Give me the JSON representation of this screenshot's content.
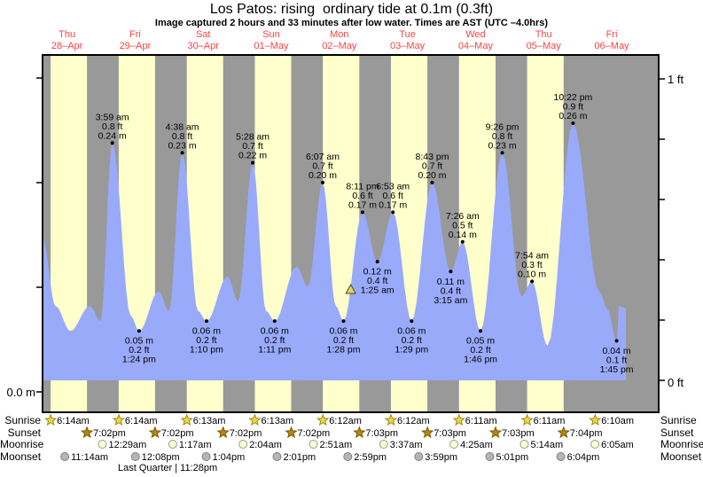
{
  "header": {
    "title": "Los Patos: rising  ordinary tide at 0.1m (0.3ft)",
    "subtitle": "Image captured 2 hours and 33 minutes after low water. Times are AST (UTC –4.0hrs)"
  },
  "chart_data": {
    "type": "area",
    "title": "Los Patos: rising  ordinary tide at 0.1m (0.3ft)",
    "x_axis": {
      "unit": "days",
      "days_shown": 9
    },
    "y_axis": {
      "left_label": "0.0 m",
      "right_top_label": "1 ft",
      "right_bottom_label": "0 ft",
      "right_ticks_ft": [
        0,
        0.2,
        0.4,
        0.6,
        0.8,
        1.0
      ],
      "left_ticks_m": [
        0.0,
        0.1,
        0.2,
        0.3
      ]
    },
    "days": [
      {
        "weekday": "Thu",
        "date": "28–Apr"
      },
      {
        "weekday": "Fri",
        "date": "29–Apr"
      },
      {
        "weekday": "Sat",
        "date": "30–Apr"
      },
      {
        "weekday": "Sun",
        "date": "01–May"
      },
      {
        "weekday": "Mon",
        "date": "02–May"
      },
      {
        "weekday": "Tue",
        "date": "03–May"
      },
      {
        "weekday": "Wed",
        "date": "04–May"
      },
      {
        "weekday": "Thu",
        "date": "05–May"
      },
      {
        "weekday": "Fri",
        "date": "06–May"
      }
    ],
    "tide_events": [
      {
        "day": 1,
        "time": "3:59 am",
        "ft": "0.8 ft",
        "m": "0.24 m",
        "type": "high"
      },
      {
        "day": 1,
        "time": "1:24 pm",
        "ft": "0.2 ft",
        "m": "0.05 m",
        "type": "low"
      },
      {
        "day": 2,
        "time": "4:38 am",
        "ft": "0.8 ft",
        "m": "0.23 m",
        "type": "high"
      },
      {
        "day": 2,
        "time": "1:10 pm",
        "ft": "0.2 ft",
        "m": "0.06 m",
        "type": "low"
      },
      {
        "day": 3,
        "time": "5:28 am",
        "ft": "0.7 ft",
        "m": "0.22 m",
        "type": "high"
      },
      {
        "day": 3,
        "time": "1:11 pm",
        "ft": "0.2 ft",
        "m": "0.06 m",
        "type": "low"
      },
      {
        "day": 4,
        "time": "6:07 am",
        "ft": "0.7 ft",
        "m": "0.20 m",
        "type": "high"
      },
      {
        "day": 4,
        "time": "1:28 pm",
        "ft": "0.2 ft",
        "m": "0.06 m",
        "type": "low"
      },
      {
        "day": 4,
        "time": "8:11 pm",
        "ft": "0.6 ft",
        "m": "0.17 m",
        "type": "high"
      },
      {
        "day": 5,
        "time": "1:25 am",
        "ft": "0.4 ft",
        "m": "0.12 m",
        "type": "low"
      },
      {
        "day": 5,
        "time": "6:53 am",
        "ft": "0.6 ft",
        "m": "0.17 m",
        "type": "high"
      },
      {
        "day": 5,
        "time": "1:29 pm",
        "ft": "0.2 ft",
        "m": "0.06 m",
        "type": "low"
      },
      {
        "day": 5,
        "time": "8:43 pm",
        "ft": "0.7 ft",
        "m": "0.20 m",
        "type": "high"
      },
      {
        "day": 6,
        "time": "3:15 am",
        "ft": "0.4 ft",
        "m": "0.11 m",
        "type": "low"
      },
      {
        "day": 6,
        "time": "7:26 am",
        "ft": "0.5 ft",
        "m": "0.14 m",
        "type": "high"
      },
      {
        "day": 6,
        "time": "1:46 pm",
        "ft": "0.2 ft",
        "m": "0.05 m",
        "type": "low"
      },
      {
        "day": 6,
        "time": "9:26 pm",
        "ft": "0.8 ft",
        "m": "0.23 m",
        "type": "high"
      },
      {
        "day": 7,
        "time": "7:54 am",
        "ft": "0.3 ft",
        "m": "0.10 m",
        "type": "high"
      },
      {
        "day": 7,
        "time": "10:22 pm",
        "ft": "0.9 ft",
        "m": "0.26 m",
        "type": "high"
      },
      {
        "day": 8,
        "time": "1:45 pm",
        "ft": "0.1 ft",
        "m": "0.04 m",
        "type": "low"
      }
    ],
    "curve_extra_points": [
      [
        0,
        3.3,
        0.145
      ],
      [
        0,
        8.0,
        0.075
      ],
      [
        0,
        13.2,
        0.05
      ],
      [
        0,
        20.0,
        0.075
      ],
      [
        0,
        23.8,
        0.06
      ],
      [
        1,
        10.5,
        0.065
      ],
      [
        1,
        20.3,
        0.09
      ],
      [
        1,
        23.9,
        0.07
      ],
      [
        2,
        10.2,
        0.07
      ],
      [
        2,
        20.6,
        0.105
      ],
      [
        3,
        0.3,
        0.08
      ],
      [
        3,
        10.2,
        0.07
      ],
      [
        3,
        20.9,
        0.115
      ],
      [
        4,
        0.9,
        0.095
      ],
      [
        4,
        10.8,
        0.075
      ],
      [
        7,
        4.2,
        0.085
      ],
      [
        7,
        13.4,
        0.035
      ],
      [
        8,
        7.8,
        0.089
      ],
      [
        8,
        10.5,
        0.072
      ],
      [
        8,
        14.6,
        0.075
      ],
      [
        8,
        17.0,
        0.073
      ]
    ],
    "current_marker": {
      "day": 4,
      "position_time": "4:01 pm"
    },
    "sun_moon": {
      "rows": [
        {
          "id": "sunrise",
          "label": "Sunrise",
          "icon": "sunrise-star",
          "items": [
            {
              "day": 0,
              "time": "6:14am"
            },
            {
              "day": 1,
              "time": "6:14am"
            },
            {
              "day": 2,
              "time": "6:13am"
            },
            {
              "day": 3,
              "time": "6:13am"
            },
            {
              "day": 4,
              "time": "6:12am"
            },
            {
              "day": 5,
              "time": "6:12am"
            },
            {
              "day": 6,
              "time": "6:11am"
            },
            {
              "day": 7,
              "time": "6:11am"
            },
            {
              "day": 8,
              "time": "6:10am"
            }
          ]
        },
        {
          "id": "sunset",
          "label": "Sunset",
          "icon": "sunset-star",
          "items": [
            {
              "day": 0,
              "time": "7:02pm"
            },
            {
              "day": 1,
              "time": "7:02pm"
            },
            {
              "day": 2,
              "time": "7:02pm"
            },
            {
              "day": 3,
              "time": "7:02pm"
            },
            {
              "day": 4,
              "time": "7:03pm"
            },
            {
              "day": 5,
              "time": "7:03pm"
            },
            {
              "day": 6,
              "time": "7:03pm"
            },
            {
              "day": 7,
              "time": "7:04pm"
            }
          ]
        },
        {
          "id": "moonrise",
          "label": "Moonrise",
          "icon": "moonrise-circle",
          "items": [
            {
              "day": 1,
              "time": "12:29am"
            },
            {
              "day": 2,
              "time": "1:17am"
            },
            {
              "day": 3,
              "time": "2:04am"
            },
            {
              "day": 4,
              "time": "2:51am"
            },
            {
              "day": 5,
              "time": "3:37am"
            },
            {
              "day": 6,
              "time": "4:25am"
            },
            {
              "day": 7,
              "time": "5:14am"
            },
            {
              "day": 8,
              "time": "6:05am"
            }
          ]
        },
        {
          "id": "moonset",
          "label": "Moonset",
          "icon": "moonset-circle",
          "items": [
            {
              "day": 0,
              "time": "11:14am"
            },
            {
              "day": 1,
              "time": "12:08pm"
            },
            {
              "day": 2,
              "time": "1:04pm"
            },
            {
              "day": 3,
              "time": "2:01pm"
            },
            {
              "day": 4,
              "time": "2:59pm"
            },
            {
              "day": 5,
              "time": "3:59pm"
            },
            {
              "day": 6,
              "time": "5:01pm"
            },
            {
              "day": 7,
              "time": "6:04pm"
            }
          ]
        }
      ],
      "phase": {
        "label": "Last Quarter | 11:28pm",
        "day": 1,
        "time": "11:28pm"
      }
    },
    "colors": {
      "daylight_band": "#ffffcc",
      "night_band": "#999999",
      "tide_fill": "#99aafa",
      "day_label_red": "#ff4242",
      "frame": "#000000",
      "sunrise_star": "#f2d43c",
      "sunrise_star_stroke": "#9b8b20",
      "sunset_star": "#b8860b",
      "sunset_star_stroke": "#7a5a07",
      "moonrise_fill": "#ffffcc",
      "moonrise_stroke": "#999999",
      "moonset_fill": "#b5b5b5",
      "moonset_stroke": "#7f7f7f",
      "marker_fill": "#e8d44d",
      "marker_stroke": "#444444"
    }
  }
}
